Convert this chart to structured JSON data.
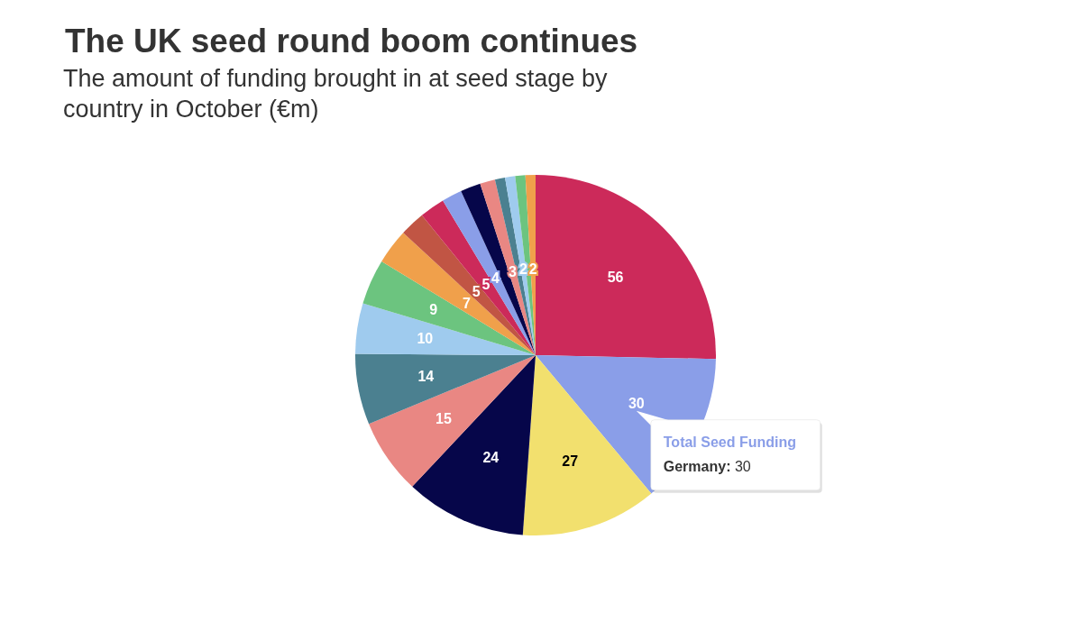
{
  "chart_data": {
    "type": "pie",
    "title": "The UK seed round boom continues",
    "subtitle": "The amount of funding brought in at seed stage by country in October (€m)",
    "annotations": [
      "Total Seed Funding",
      "Germany: 30"
    ],
    "series": [
      {
        "values": [
          56,
          30,
          27,
          24,
          15,
          14,
          10,
          9,
          7,
          5,
          5,
          4,
          4,
          3,
          2,
          2,
          2,
          2
        ],
        "value_labels": [
          "56",
          "30",
          "27",
          "24",
          "15",
          "14",
          "10",
          "9",
          "7",
          "5",
          "5",
          "4",
          null,
          "3",
          null,
          "2",
          null,
          "2"
        ]
      }
    ],
    "colors": [
      "#cc2a5a",
      "#8a9ee8",
      "#f2e06e",
      "#06064a",
      "#e98783",
      "#4b8090",
      "#9fcbee",
      "#6cc47f",
      "#f0a04b",
      "#c15544",
      "#cc2a5a",
      "#8a9ee8",
      "#06064a",
      "#e98783",
      "#4b8090",
      "#9fcbee",
      "#6cc47f",
      "#f0a04b"
    ]
  }
}
